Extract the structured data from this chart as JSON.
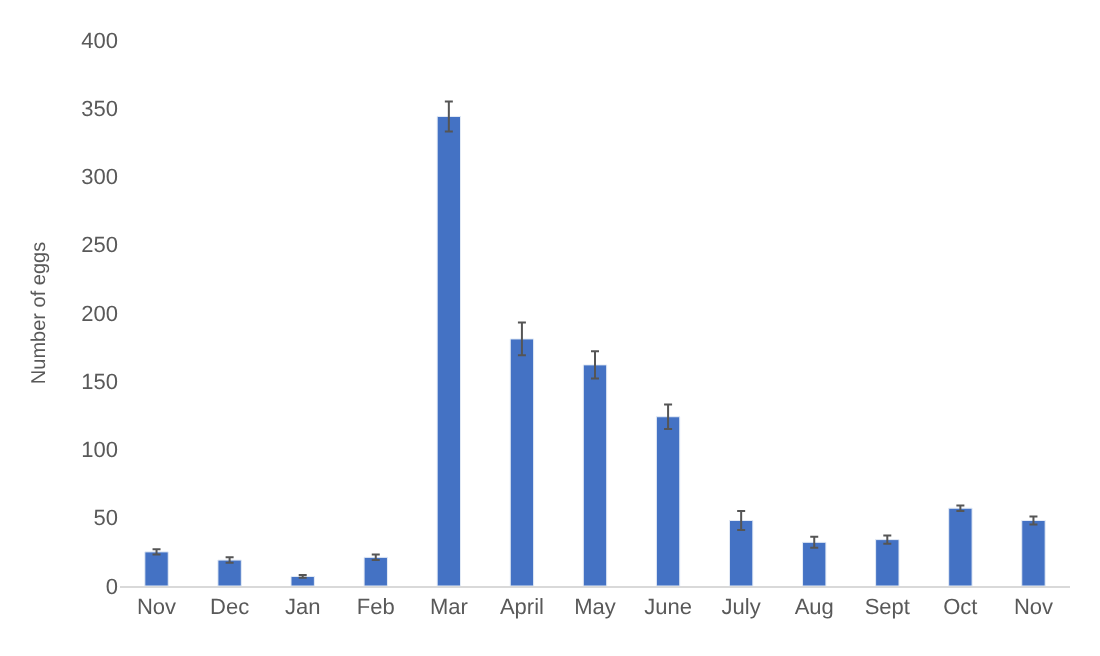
{
  "chart_data": {
    "type": "bar",
    "ylabel": "Number of eggs",
    "categories": [
      "Nov",
      "Dec",
      "Jan",
      "Feb",
      "Mar",
      "April",
      "May",
      "June",
      "July",
      "Aug",
      "Sept",
      "Oct",
      "Nov"
    ],
    "values": [
      25,
      19,
      7,
      21,
      344,
      181,
      162,
      124,
      48,
      32,
      34,
      57,
      48
    ],
    "errors": [
      2,
      2,
      1,
      2,
      11,
      12,
      10,
      9,
      7,
      4,
      3,
      2,
      3
    ],
    "color": "#4472c4",
    "ylim": [
      0,
      400
    ],
    "yticks": [
      0,
      50,
      100,
      150,
      200,
      250,
      300,
      350,
      400
    ],
    "grid": false
  }
}
